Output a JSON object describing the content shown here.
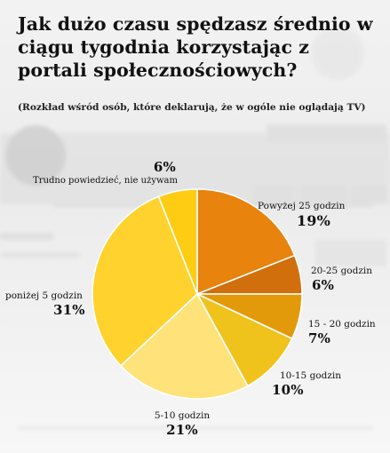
{
  "chart_data": {
    "type": "pie",
    "title": "Jak dużo czasu spędzasz średnio w ciągu tygodnia korzystając z portali społecznościowych?",
    "subtitle": "(Rozkład wśród osób, które deklarują, że w ogóle nie oglądają TV)",
    "slices": [
      {
        "label": "Powyżej 25 godzin",
        "value": 19,
        "display": "19%",
        "color": "#e8830e"
      },
      {
        "label": "20-25 godzin",
        "value": 6,
        "display": "6%",
        "color": "#d06f0c"
      },
      {
        "label": "15 - 20 godzin",
        "value": 7,
        "display": "7%",
        "color": "#e39a0a"
      },
      {
        "label": "10-15 godzin",
        "value": 10,
        "display": "10%",
        "color": "#f0c21c"
      },
      {
        "label": "5-10 godzin",
        "value": 21,
        "display": "21%",
        "color": "#ffe27a"
      },
      {
        "label": "poniżej 5 godzin",
        "value": 31,
        "display": "31%",
        "color": "#ffd22e"
      },
      {
        "label": "Trudno powiedzieć, nie używam",
        "value": 6,
        "display": "6%",
        "color": "#ffcc14"
      }
    ],
    "start_angle_deg": 0,
    "direction": "clockwise"
  }
}
